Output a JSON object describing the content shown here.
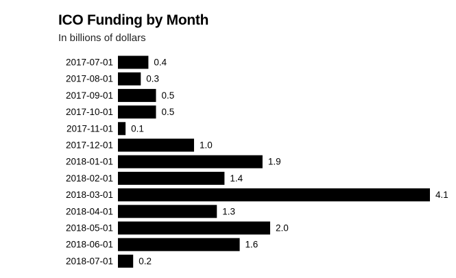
{
  "chart_data": {
    "type": "bar",
    "orientation": "horizontal",
    "title": "ICO Funding by Month",
    "subtitle": "In billions of dollars",
    "categories": [
      "2017-07-01",
      "2017-08-01",
      "2017-09-01",
      "2017-10-01",
      "2017-11-01",
      "2017-12-01",
      "2018-01-01",
      "2018-02-01",
      "2018-03-01",
      "2018-04-01",
      "2018-05-01",
      "2018-06-01",
      "2018-07-01"
    ],
    "values": [
      0.4,
      0.3,
      0.5,
      0.5,
      0.1,
      1.0,
      1.9,
      1.4,
      4.1,
      1.3,
      2.0,
      1.6,
      0.2
    ],
    "value_labels": [
      "0.4",
      "0.3",
      "0.5",
      "0.5",
      "0.1",
      "1.0",
      "1.9",
      "1.4",
      "4.1",
      "1.3",
      "2.0",
      "1.6",
      "0.2"
    ],
    "xlim": [
      0,
      4.1
    ],
    "grid": false,
    "legend": "none",
    "bar_color": "#000000"
  }
}
